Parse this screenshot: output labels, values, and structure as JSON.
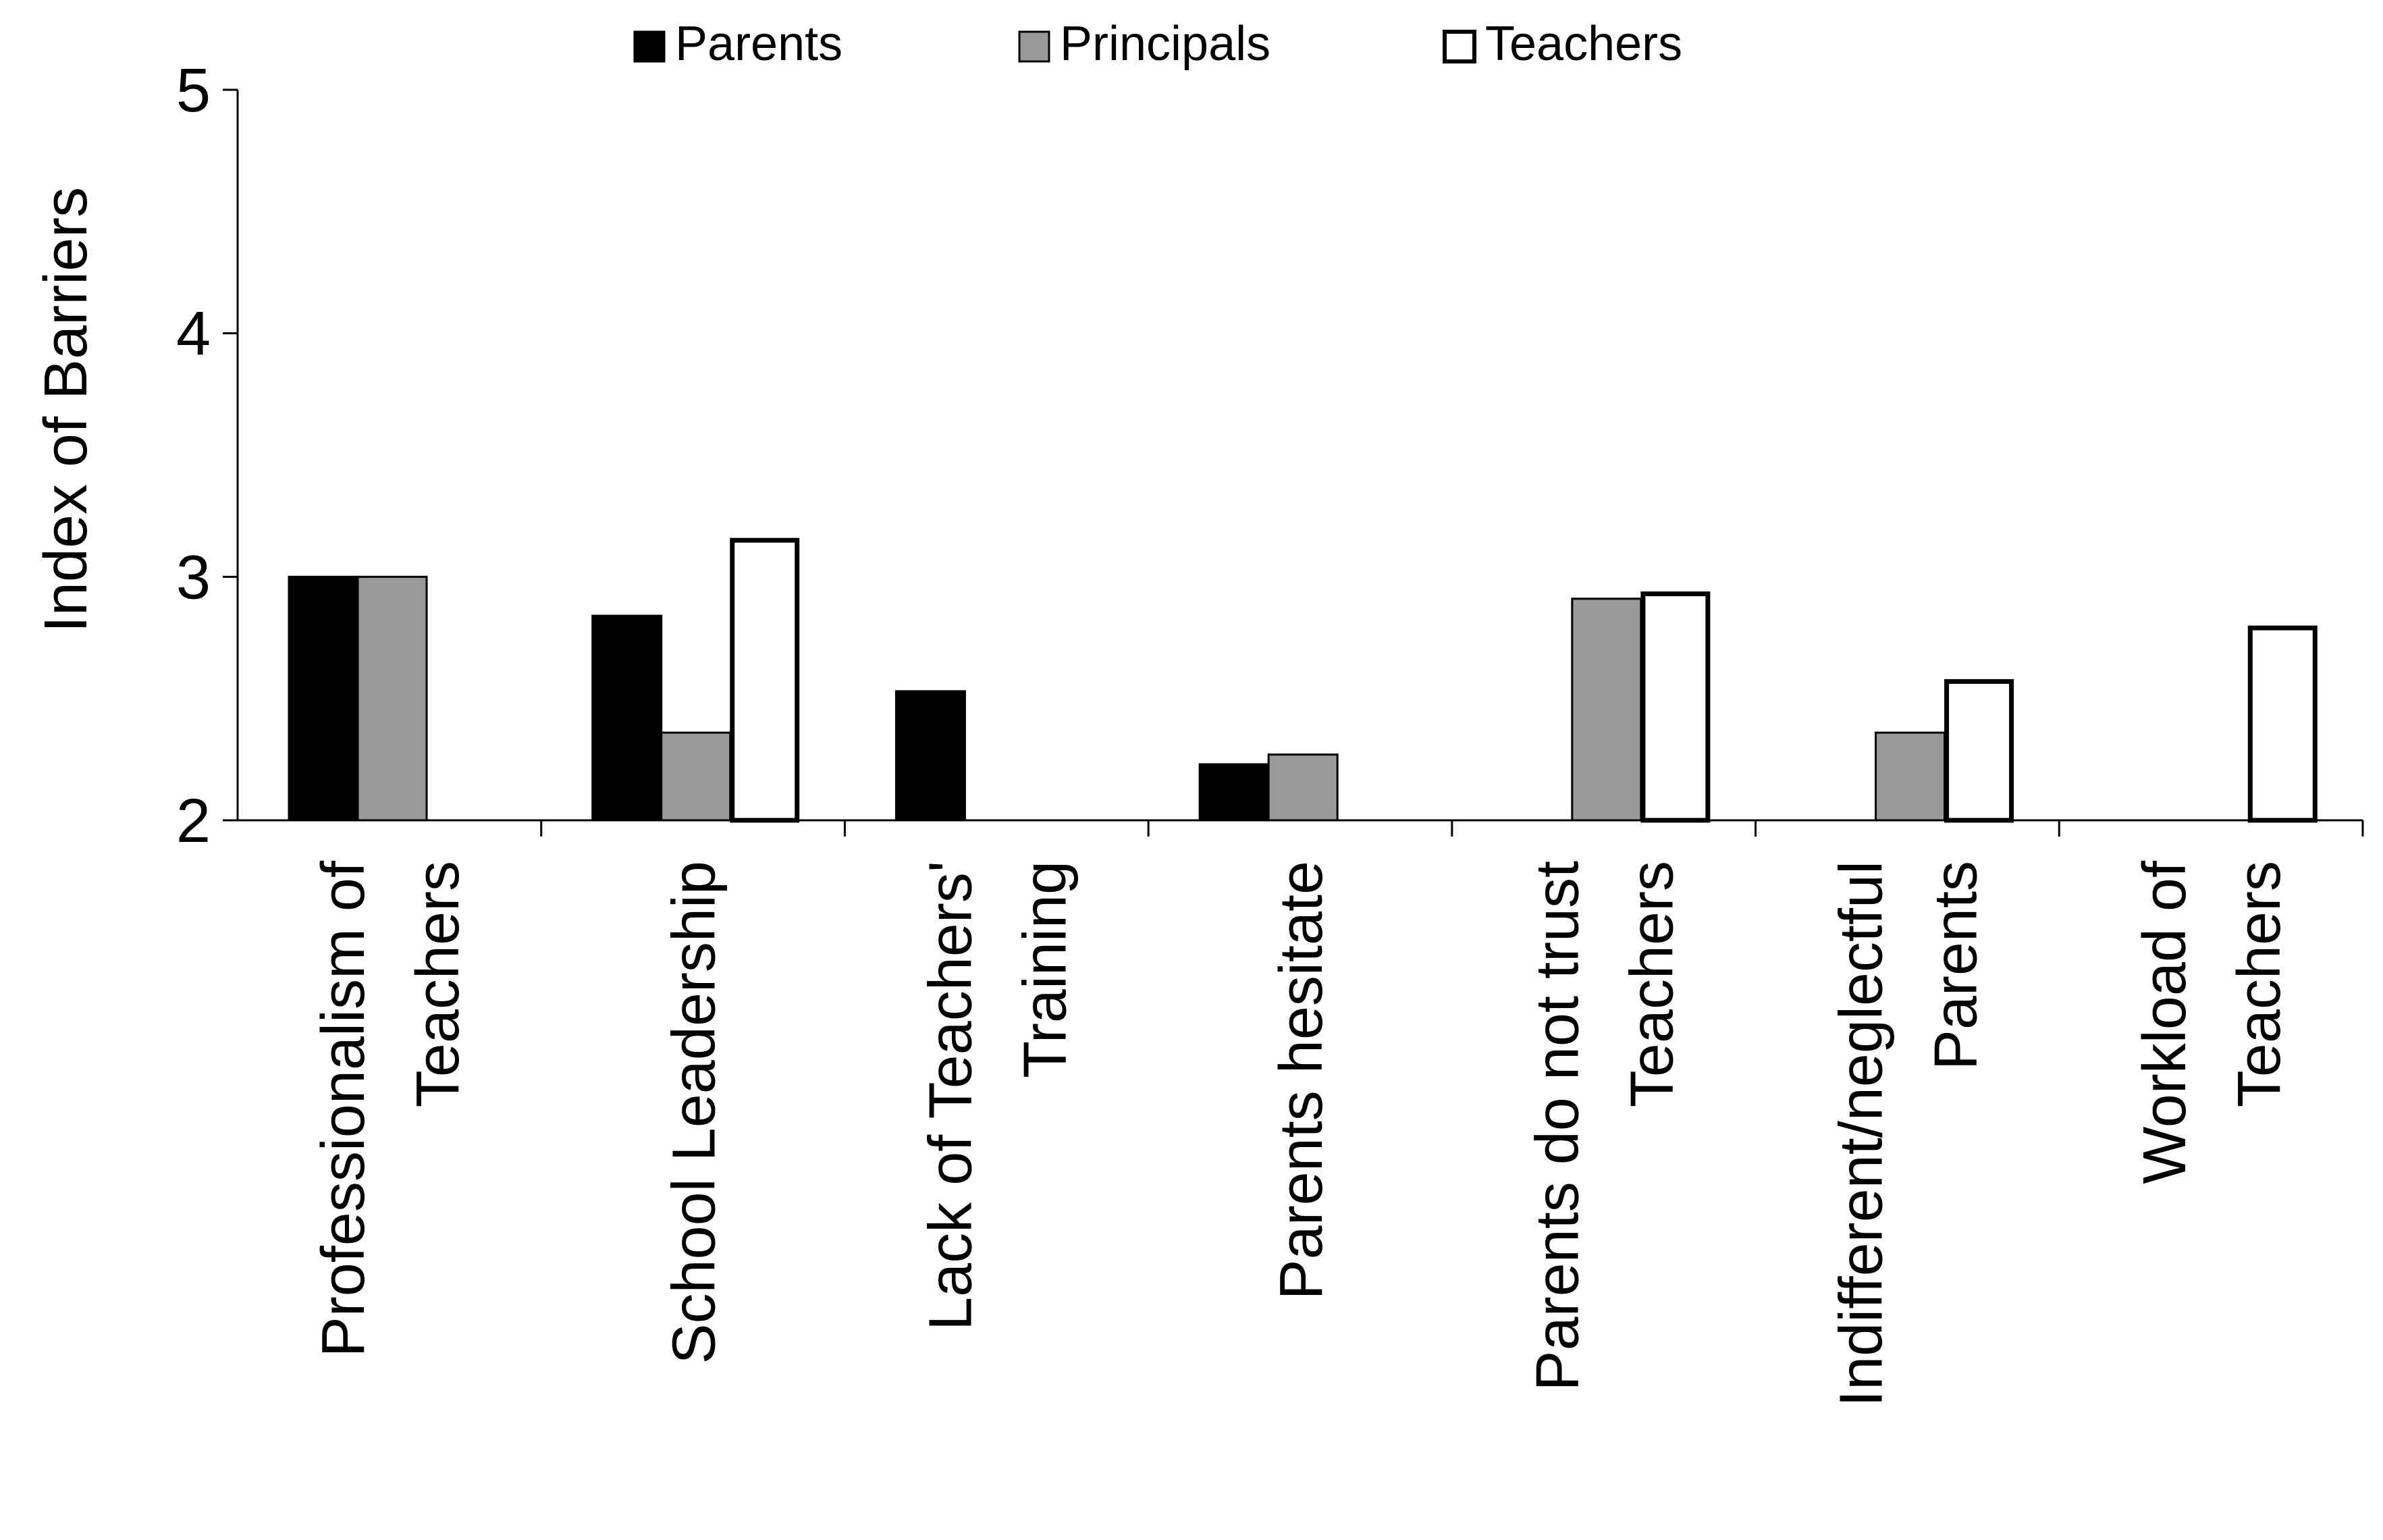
{
  "chart_data": {
    "type": "bar",
    "title": "",
    "xlabel": "",
    "ylabel": "Index of Barriers",
    "ylim": [
      2,
      5
    ],
    "yticks": [
      2,
      3,
      4,
      5
    ],
    "grid": false,
    "legend_position": "top",
    "categories": [
      [
        "Professionalism of",
        "Teachers"
      ],
      [
        "School Leadership"
      ],
      [
        "Lack of Teachers'",
        "Training"
      ],
      [
        "Parents hesitate"
      ],
      [
        "Parents do not trust",
        "Teachers"
      ],
      [
        "Indifferent/neglectful",
        "Parents"
      ],
      [
        "Workload of",
        "Teachers"
      ]
    ],
    "series": [
      {
        "name": "Parents",
        "color": "#000000",
        "values": [
          3.0,
          2.84,
          2.53,
          2.23,
          null,
          null,
          null
        ]
      },
      {
        "name": "Principals",
        "color": "#999999",
        "values": [
          3.0,
          2.36,
          null,
          2.27,
          2.91,
          2.36,
          null
        ]
      },
      {
        "name": "Teachers",
        "color": "#ffffff",
        "values": [
          null,
          3.15,
          null,
          null,
          2.93,
          2.57,
          2.79
        ]
      }
    ]
  }
}
